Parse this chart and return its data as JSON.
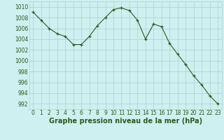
{
  "x": [
    0,
    1,
    2,
    3,
    4,
    5,
    6,
    7,
    8,
    9,
    10,
    11,
    12,
    13,
    14,
    15,
    16,
    17,
    18,
    19,
    20,
    21,
    22,
    23
  ],
  "y": [
    1009.0,
    1007.5,
    1006.0,
    1005.0,
    1004.5,
    1003.0,
    1003.0,
    1004.5,
    1006.5,
    1008.0,
    1009.5,
    1009.8,
    1009.3,
    1007.5,
    1004.0,
    1006.8,
    1006.3,
    1003.2,
    1001.2,
    999.3,
    997.2,
    995.5,
    993.5,
    992.0
  ],
  "line_color": "#2d5a1b",
  "marker_color": "#2d5a1b",
  "bg_color": "#cff0f0",
  "grid_color": "#aacfcf",
  "xlabel": "Graphe pression niveau de la mer (hPa)",
  "ylim": [
    991,
    1011
  ],
  "xlim": [
    -0.5,
    23.5
  ],
  "yticks": [
    992,
    994,
    996,
    998,
    1000,
    1002,
    1004,
    1006,
    1008,
    1010
  ],
  "xticks": [
    0,
    1,
    2,
    3,
    4,
    5,
    6,
    7,
    8,
    9,
    10,
    11,
    12,
    13,
    14,
    15,
    16,
    17,
    18,
    19,
    20,
    21,
    22,
    23
  ],
  "tick_label_size": 5.5,
  "xlabel_size": 7,
  "line_width": 0.8,
  "marker_size": 3.5
}
